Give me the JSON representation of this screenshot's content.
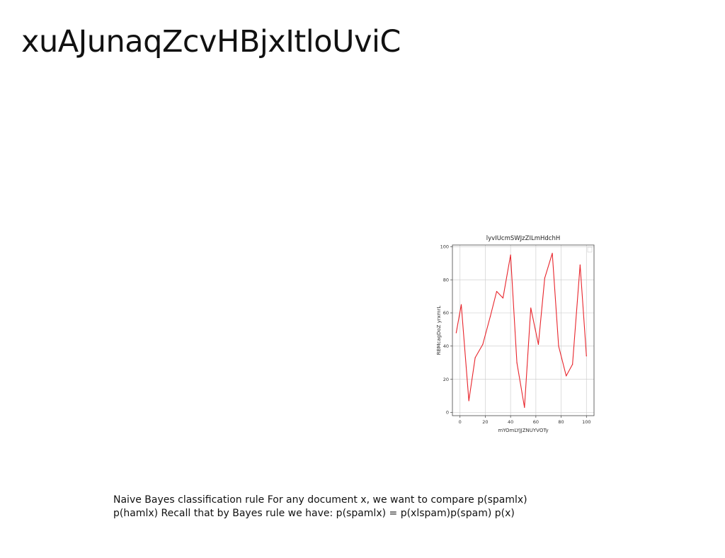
{
  "slide": {
    "title": "xuAJunaqZcvHBjxItloUviC",
    "body_lines": [
      "Naive Bayes classification rule For any document x, we want to compare p(spamlx)",
      "p(hamlx) Recall that by Bayes rule we have: p(spamlx) = p(xlspam)p(spam) p(x)"
    ]
  },
  "chart_data": {
    "type": "line",
    "title": "lyvIUcmSWJzZILmHdchH",
    "xlabel": "mYOmLYJJZNUYVOTy",
    "ylabel": "RBMcagDoZ yrxmrL",
    "xlim": [
      -6,
      106
    ],
    "ylim": [
      -2,
      101
    ],
    "xticks": [
      0,
      20,
      40,
      60,
      80,
      100
    ],
    "yticks": [
      0,
      20,
      40,
      60,
      80,
      100
    ],
    "grid": true,
    "line_color": "#e8242b",
    "series": [
      {
        "x": [
          -3,
          1,
          7,
          12,
          18,
          24,
          29,
          34,
          40,
          45,
          51,
          56,
          62,
          67,
          73,
          78,
          84,
          89,
          95,
          100
        ],
        "y": [
          48,
          65,
          7,
          33,
          41,
          58,
          73,
          69,
          95,
          30,
          3,
          63,
          41,
          81,
          96,
          40,
          22,
          29,
          89,
          34
        ]
      }
    ]
  }
}
